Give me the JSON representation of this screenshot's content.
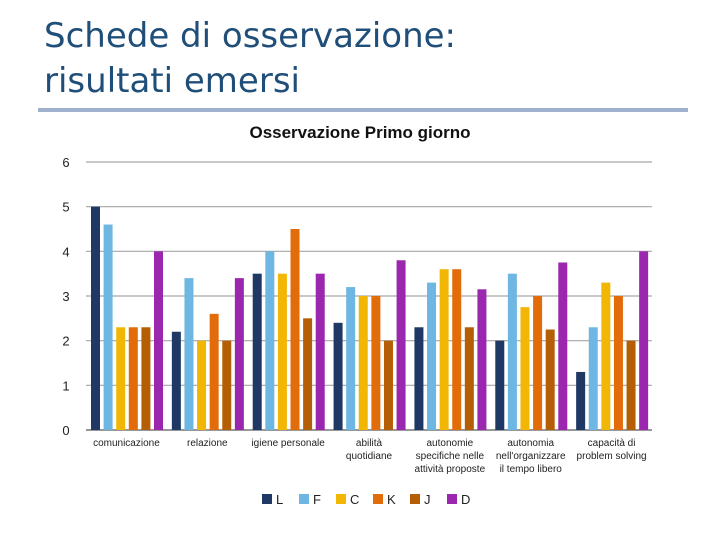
{
  "slide": {
    "title_line1": "Schede di osservazione:",
    "title_line2": "risultati emersi"
  },
  "chart_data": {
    "type": "bar",
    "title": "Osservazione Primo giorno",
    "xlabel": "",
    "ylabel": "",
    "ylim": [
      0,
      6
    ],
    "yticks": [
      0,
      1,
      2,
      3,
      4,
      5,
      6
    ],
    "grid": true,
    "legend_position": "bottom",
    "categories": [
      [
        "comunicazione"
      ],
      [
        "relazione"
      ],
      [
        "igiene personale"
      ],
      [
        "abilità",
        "quotidiane"
      ],
      [
        "autonomie",
        "specifiche nelle",
        "attività proposte"
      ],
      [
        "autonomia",
        "nell'organizzare",
        "il tempo libero"
      ],
      [
        "capacità di",
        "problem solving"
      ]
    ],
    "series": [
      {
        "name": "L",
        "color": "#1f3864",
        "values": [
          5.0,
          2.2,
          3.5,
          2.4,
          2.3,
          2.0,
          1.3
        ]
      },
      {
        "name": "F",
        "color": "#6fb7e3",
        "values": [
          4.6,
          3.4,
          4.0,
          3.2,
          3.3,
          3.5,
          2.3
        ]
      },
      {
        "name": "C",
        "color": "#f2b705",
        "values": [
          2.3,
          2.0,
          3.5,
          3.0,
          3.6,
          2.75,
          3.3
        ]
      },
      {
        "name": "K",
        "color": "#e36c0a",
        "values": [
          2.3,
          2.6,
          4.5,
          3.0,
          3.6,
          3.0,
          3.0
        ]
      },
      {
        "name": "J",
        "color": "#b45f06",
        "values": [
          2.3,
          2.0,
          2.5,
          2.0,
          2.3,
          2.25,
          2.0
        ]
      },
      {
        "name": "D",
        "color": "#9b27af",
        "values": [
          4.0,
          3.4,
          3.5,
          3.8,
          3.15,
          3.75,
          4.0
        ]
      }
    ]
  }
}
